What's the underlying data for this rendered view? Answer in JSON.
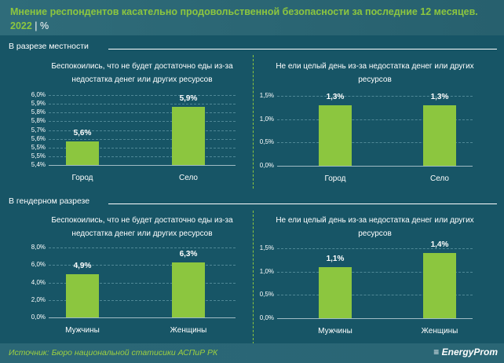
{
  "header": {
    "title": "Мнение респондентов касательно продовольственной безопасности за последние 12 месяцев.",
    "year": "2022",
    "separator": "|",
    "unit": "%"
  },
  "sections": [
    {
      "label": "В разрезе местности"
    },
    {
      "label": "В гендерном разрезе"
    }
  ],
  "footer": {
    "source": "Источник: Бюро национальной статисики АСПиР РК",
    "logo": "EnergyProm"
  },
  "colors": {
    "bar": "#8cc63f",
    "background": "#175566"
  },
  "chart_data": [
    {
      "type": "bar",
      "title": "Беспокоились, что не будет достаточно еды из-за недостатка денег или других ресурсов",
      "categories": [
        "Город",
        "Село"
      ],
      "values": [
        5.6,
        5.9
      ],
      "labels": [
        "5,6%",
        "5,9%"
      ],
      "ylim": [
        5.4,
        6.0
      ],
      "yticks": [
        "5,4%",
        "5,5%",
        "5,5%",
        "5,6%",
        "5,7%",
        "5,8%",
        "5,8%",
        "5,9%",
        "6,0%"
      ]
    },
    {
      "type": "bar",
      "title": "Не ели целый день из-за недостатка денег или других ресурсов",
      "categories": [
        "Город",
        "Село"
      ],
      "values": [
        1.3,
        1.3
      ],
      "labels": [
        "1,3%",
        "1,3%"
      ],
      "ylim": [
        0,
        1.5
      ],
      "yticks": [
        "0,0%",
        "0,5%",
        "1,0%",
        "1,5%"
      ]
    },
    {
      "type": "bar",
      "title": "Беспокоились, что не будет достаточно еды из-за недостатка денег или других ресурсов",
      "categories": [
        "Мужчины",
        "Женщины"
      ],
      "values": [
        4.9,
        6.3
      ],
      "labels": [
        "4,9%",
        "6,3%"
      ],
      "ylim": [
        0,
        8
      ],
      "yticks": [
        "0,0%",
        "2,0%",
        "4,0%",
        "6,0%",
        "8,0%"
      ]
    },
    {
      "type": "bar",
      "title": "Не ели целый день из-за недостатка денег или других ресурсов",
      "categories": [
        "Мужчины",
        "Женщины"
      ],
      "values": [
        1.1,
        1.4
      ],
      "labels": [
        "1,1%",
        "1,4%"
      ],
      "ylim": [
        0,
        1.5
      ],
      "yticks": [
        "0,0%",
        "0,5%",
        "1,0%",
        "1,5%"
      ]
    }
  ]
}
